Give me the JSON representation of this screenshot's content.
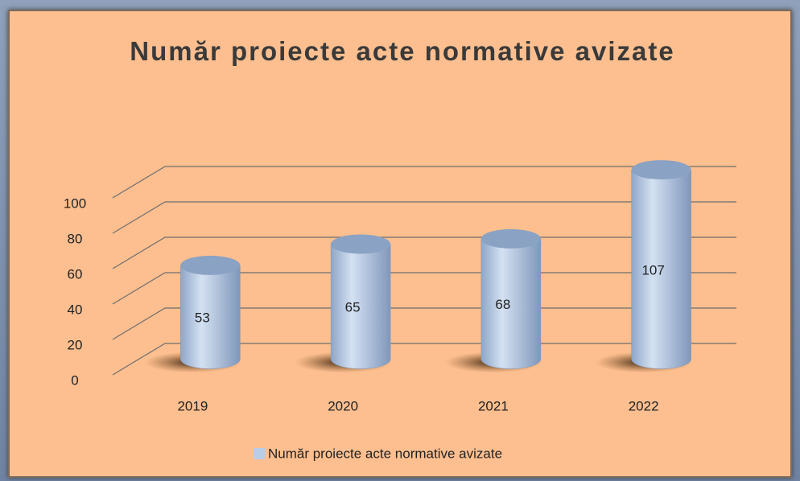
{
  "chart_data": {
    "type": "bar",
    "title": "Număr proiecte acte normative avizate",
    "categories": [
      "2019",
      "2020",
      "2021",
      "2022"
    ],
    "series": [
      {
        "name": "Număr proiecte acte normative avizate",
        "color": "#b9cde5",
        "values": [
          53,
          65,
          68,
          107
        ]
      }
    ],
    "ylim": [
      0,
      100
    ],
    "yticks": [
      0,
      20,
      40,
      60,
      80,
      100
    ],
    "grid": true,
    "legend": "bottom"
  }
}
